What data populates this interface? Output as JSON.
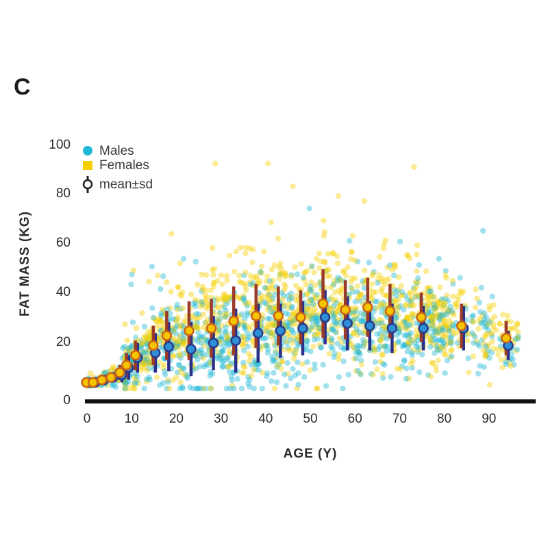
{
  "panel_label": "C",
  "chart_data": {
    "type": "scatter",
    "title": "",
    "xlabel": "AGE (Y)",
    "ylabel": "FAT MASS (KG)",
    "xlim": [
      0,
      100
    ],
    "ylim": [
      0,
      100
    ],
    "xticks": [
      0,
      10,
      20,
      30,
      40,
      50,
      60,
      70,
      80,
      90
    ],
    "yticks": [
      0,
      20,
      40,
      60,
      80,
      100
    ],
    "grid": false,
    "legend": {
      "placement": "top-left",
      "entries": [
        {
          "label": "Males",
          "marker": "dot",
          "color": "#1fb8d6"
        },
        {
          "label": "Females",
          "marker": "dot",
          "color": "#f5d000"
        },
        {
          "label": "mean±sd",
          "marker": "circle-errorbar",
          "color": "#222222"
        }
      ]
    },
    "colors": {
      "males_scatter": "#1fb8d6",
      "females_scatter": "#f5d000",
      "males_mean_fill": "#2d8fd6",
      "males_mean_edge": "#2a3a8a",
      "males_sd_bar": "#2a2f8a",
      "females_mean_fill": "#f7c400",
      "females_mean_edge": "#c8641a",
      "females_sd_bar": "#9a3b2a"
    },
    "series": [
      {
        "name": "Females mean±sd",
        "x": [
          0,
          1.5,
          3.5,
          5.5,
          7.5,
          9,
          11,
          15,
          18,
          23,
          28,
          33,
          38,
          43,
          48,
          53,
          58,
          63,
          68,
          75,
          84,
          94
        ],
        "mean": [
          3,
          3,
          4,
          5,
          7,
          10,
          14,
          18,
          22,
          24,
          25,
          28,
          30,
          30,
          29.5,
          35,
          32.5,
          33.5,
          32,
          29.5,
          26,
          21
        ],
        "sd": [
          1,
          1,
          1.5,
          2,
          3,
          5,
          6,
          8,
          10,
          12,
          12,
          14,
          13,
          12,
          11,
          14,
          12,
          12,
          11,
          10,
          9,
          7
        ]
      },
      {
        "name": "Males mean±sd",
        "x": [
          0,
          1.5,
          3.5,
          5.5,
          7.5,
          9,
          11,
          15,
          18,
          23,
          28,
          33,
          38,
          43,
          48,
          53,
          58,
          63,
          68,
          75,
          84,
          94
        ],
        "mean": [
          3,
          3,
          4,
          5,
          6,
          9,
          13,
          15,
          17.5,
          16.5,
          19,
          20,
          23,
          24,
          25,
          29.5,
          27,
          26,
          25,
          25,
          25,
          18
        ],
        "sd": [
          1,
          1,
          1.5,
          2,
          3,
          5,
          6,
          8,
          10,
          11,
          11,
          13,
          12,
          11,
          11,
          11,
          11,
          10,
          10,
          9,
          9,
          6
        ]
      }
    ],
    "scatter_groups": [
      {
        "name": "Males",
        "age_range": [
          0,
          97
        ],
        "approx_points": 2200,
        "envelope": "follows male mean±2sd; sparse outliers up to ~78 kg"
      },
      {
        "name": "Females",
        "age_range": [
          0,
          97
        ],
        "approx_points": 2600,
        "envelope": "follows female mean±2sd; sparse outliers up to ~92 kg"
      }
    ]
  }
}
